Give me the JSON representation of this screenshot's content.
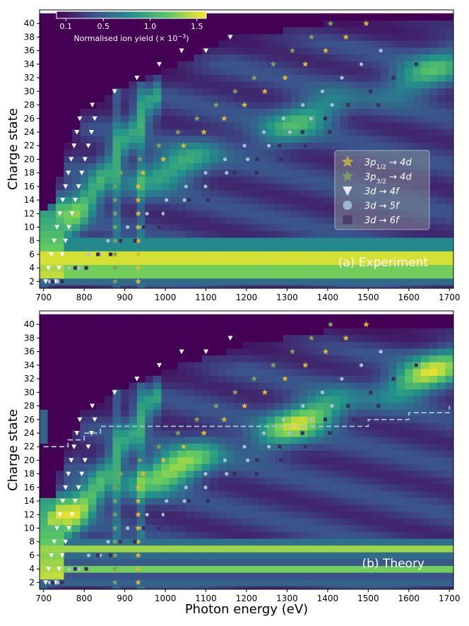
{
  "chart_data": [
    {
      "type": "heatmap",
      "panel_label": "(a) Experiment",
      "title": "",
      "xlabel": "",
      "ylabel": "Charge state",
      "xlim": [
        690,
        1710
      ],
      "ylim": [
        1,
        42
      ],
      "xticks": [
        "700",
        "800",
        "900",
        "1000",
        "1100",
        "1200",
        "1300",
        "1400",
        "1500",
        "1600",
        "1700"
      ],
      "yticks": [
        "2",
        "4",
        "6",
        "8",
        "10",
        "12",
        "14",
        "16",
        "18",
        "20",
        "22",
        "24",
        "26",
        "28",
        "30",
        "32",
        "34",
        "36",
        "38",
        "40"
      ],
      "colorbar": {
        "label_prefix": "Normalised ion yield (× 10",
        "label_exp": "−3",
        "label_suffix": ")",
        "ticks": [
          "0.1",
          "0.5",
          "1.0",
          "1.5"
        ],
        "tick_values": [
          0.1,
          0.5,
          1.0,
          1.5
        ],
        "range": [
          0,
          1.6
        ]
      },
      "legend": {
        "position": "center-right",
        "entries": [
          {
            "label_main": "3p",
            "label_sub": "1/2",
            "label_rest": "  →  4d",
            "marker": "star",
            "color": "#c9b43c"
          },
          {
            "label_main": "3p",
            "label_sub": "3/2",
            "label_rest": "  →  4d",
            "marker": "star",
            "color": "#7fa25a"
          },
          {
            "label_main": "3d",
            "label_sub": "",
            "label_rest": "  →  4f",
            "marker": "triangle-down",
            "color": "#e8e8f0"
          },
          {
            "label_main": "3d",
            "label_sub": "",
            "label_rest": "  →  5f",
            "marker": "circle",
            "color": "#9fb5cc"
          },
          {
            "label_main": "3d",
            "label_sub": "",
            "label_rest": "  →  6f",
            "marker": "square",
            "color": "#4a3f6b"
          }
        ]
      }
    },
    {
      "type": "heatmap",
      "panel_label": "(b) Theory",
      "title": "",
      "xlabel": "Photon energy (eV)",
      "ylabel": "Charge state",
      "xlim": [
        690,
        1710
      ],
      "ylim": [
        1,
        42
      ],
      "xticks": [
        "700",
        "800",
        "900",
        "1000",
        "1100",
        "1200",
        "1300",
        "1400",
        "1500",
        "1600",
        "1700"
      ],
      "yticks": [
        "2",
        "4",
        "6",
        "8",
        "10",
        "12",
        "14",
        "16",
        "18",
        "20",
        "22",
        "24",
        "26",
        "28",
        "30",
        "32",
        "34",
        "36",
        "38",
        "40"
      ],
      "dashed_line": {
        "x": [
          700,
          720,
          760,
          790,
          800,
          820,
          840,
          860,
          880,
          1150,
          1200,
          1400,
          1450,
          1500,
          1550,
          1600,
          1650,
          1700
        ],
        "y": [
          22,
          22,
          23,
          23,
          24,
          24,
          25,
          25,
          25,
          25,
          25,
          25,
          25,
          26,
          26,
          27,
          27,
          28
        ]
      }
    }
  ],
  "markers": {
    "3p12_4d": {
      "x": [
        933,
        1000,
        1060,
        1130,
        1200,
        1270,
        1340,
        1410,
        1480
      ],
      "ystart": [
        2,
        18,
        24,
        28,
        32,
        34,
        36,
        38,
        40
      ]
    },
    "3p32_4d": {
      "x": [
        876,
        950,
        1010,
        1080,
        1150,
        1220,
        1290,
        1360,
        1400
      ],
      "ystart": [
        2,
        18,
        24,
        28,
        32,
        34,
        36,
        38,
        40
      ]
    },
    "3d_4f": {
      "x": [
        700,
        710,
        725,
        740,
        760,
        780,
        800,
        840,
        880,
        920,
        980,
        1040,
        1100,
        1160
      ],
      "ystart": [
        2,
        4,
        6,
        8,
        10,
        14,
        18,
        20,
        22,
        24,
        26,
        28,
        32,
        36
      ]
    }
  }
}
